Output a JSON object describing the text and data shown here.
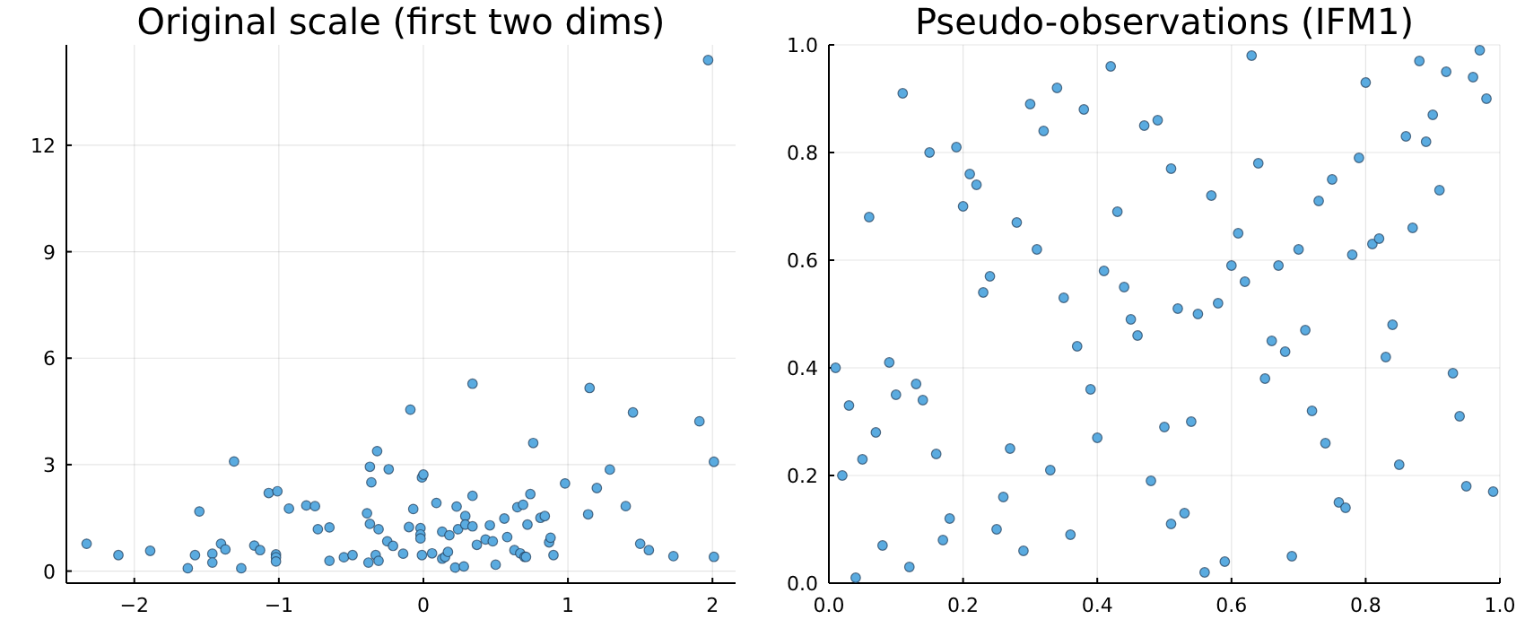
{
  "chart_data": [
    {
      "type": "scatter",
      "title": "Original scale (first two dims)",
      "xlim": [
        -2.47,
        2.16
      ],
      "ylim": [
        -0.34,
        14.83
      ],
      "xticks": [
        {
          "value": -2,
          "label": "−2"
        },
        {
          "value": -1,
          "label": "−1"
        },
        0,
        1,
        2
      ],
      "yticks": [
        0,
        3,
        6,
        9,
        12
      ],
      "grid": true,
      "marker": "circle",
      "series": [
        {
          "color": "#5aabe0",
          "x": [
            -2.33,
            -2.11,
            -1.89,
            -1.63,
            -1.58,
            -1.55,
            -1.46,
            -1.46,
            -1.4,
            -1.37,
            -1.31,
            -1.26,
            -1.17,
            -1.13,
            -1.07,
            -1.02,
            -1.02,
            -1.02,
            -1.01,
            -0.93,
            -0.81,
            -0.75,
            -0.73,
            -0.65,
            -0.65,
            -0.55,
            -0.49,
            -0.39,
            -0.38,
            -0.37,
            -0.37,
            -0.36,
            -0.33,
            -0.32,
            -0.31,
            -0.31,
            -0.25,
            -0.24,
            -0.21,
            -0.14,
            -0.1,
            -0.09,
            -0.07,
            -0.02,
            -0.02,
            -0.02,
            -0.01,
            -0.01,
            0.0,
            0.06,
            0.09,
            0.13,
            0.13,
            0.15,
            0.17,
            0.18,
            0.22,
            0.23,
            0.24,
            0.28,
            0.29,
            0.29,
            0.34,
            0.34,
            0.34,
            0.37,
            0.43,
            0.46,
            0.48,
            0.5,
            0.56,
            0.58,
            0.63,
            0.65,
            0.67,
            0.69,
            0.7,
            0.71,
            0.72,
            0.74,
            0.76,
            0.81,
            0.84,
            0.87,
            0.88,
            0.9,
            0.98,
            1.14,
            1.15,
            1.2,
            1.29,
            1.4,
            1.45,
            1.5,
            1.56,
            1.73,
            1.91,
            2.01,
            2.01,
            1.97
          ],
          "values": [
            0.77,
            0.45,
            0.57,
            0.08,
            0.45,
            1.68,
            0.49,
            0.24,
            0.77,
            0.61,
            3.09,
            0.08,
            0.72,
            0.59,
            2.2,
            0.47,
            0.39,
            0.27,
            2.25,
            1.76,
            1.85,
            1.83,
            1.18,
            1.23,
            0.29,
            0.39,
            0.45,
            1.63,
            0.24,
            2.94,
            1.33,
            2.5,
            0.45,
            3.38,
            1.18,
            0.29,
            0.84,
            2.87,
            0.71,
            0.49,
            1.24,
            4.55,
            1.75,
            1.21,
            1.03,
            0.92,
            0.45,
            2.64,
            2.72,
            0.5,
            1.92,
            1.11,
            0.35,
            0.4,
            0.54,
            1.01,
            0.1,
            1.82,
            1.18,
            0.13,
            1.55,
            1.31,
            1.26,
            2.12,
            5.28,
            0.74,
            0.89,
            1.29,
            0.84,
            0.18,
            1.48,
            0.96,
            0.59,
            1.8,
            0.5,
            1.87,
            0.4,
            0.4,
            1.31,
            2.17,
            3.61,
            1.5,
            1.55,
            0.81,
            0.94,
            0.45,
            2.47,
            1.6,
            5.16,
            2.34,
            2.86,
            1.83,
            4.47,
            0.77,
            0.59,
            0.42,
            4.22,
            3.08,
            0.4,
            14.4
          ]
        }
      ]
    },
    {
      "type": "scatter",
      "title": "Pseudo-observations (IFM1)",
      "xlim": [
        0,
        1
      ],
      "ylim": [
        0,
        1
      ],
      "xticks": [
        {
          "value": 0,
          "label": "0.0"
        },
        {
          "value": 0.2,
          "label": "0.2"
        },
        {
          "value": 0.4,
          "label": "0.4"
        },
        {
          "value": 0.6,
          "label": "0.6"
        },
        {
          "value": 0.8,
          "label": "0.8"
        },
        {
          "value": 1,
          "label": "1.0"
        }
      ],
      "yticks": [
        {
          "value": 0,
          "label": "0.0"
        },
        {
          "value": 0.2,
          "label": "0.2"
        },
        {
          "value": 0.4,
          "label": "0.4"
        },
        {
          "value": 0.6,
          "label": "0.6"
        },
        {
          "value": 0.8,
          "label": "0.8"
        },
        {
          "value": 1,
          "label": "1.0"
        }
      ],
      "grid": true,
      "marker": "circle",
      "series": [
        {
          "color": "#5aabe0",
          "x": [
            0.01,
            0.02,
            0.03,
            0.04,
            0.05,
            0.07,
            0.08,
            0.09,
            0.1,
            0.12,
            0.13,
            0.14,
            0.16,
            0.17,
            0.18,
            0.25,
            0.26,
            0.27,
            0.29,
            0.33,
            0.36,
            0.37,
            0.39,
            0.4,
            0.45,
            0.46,
            0.48,
            0.5,
            0.51,
            0.52,
            0.53,
            0.54,
            0.55,
            0.56,
            0.58,
            0.59,
            0.65,
            0.66,
            0.68,
            0.69,
            0.71,
            0.72,
            0.74,
            0.76,
            0.77,
            0.83,
            0.84,
            0.85,
            0.93,
            0.94,
            0.95,
            0.99,
            0.06,
            0.11,
            0.15,
            0.19,
            0.2,
            0.21,
            0.22,
            0.23,
            0.24,
            0.28,
            0.3,
            0.31,
            0.32,
            0.34,
            0.35,
            0.38,
            0.41,
            0.42,
            0.43,
            0.44,
            0.47,
            0.49,
            0.51,
            0.57,
            0.6,
            0.61,
            0.62,
            0.63,
            0.64,
            0.67,
            0.7,
            0.73,
            0.75,
            0.78,
            0.79,
            0.8,
            0.81,
            0.82,
            0.86,
            0.87,
            0.88,
            0.89,
            0.9,
            0.91,
            0.92,
            0.96,
            0.97,
            0.98
          ],
          "values": [
            0.4,
            0.2,
            0.33,
            0.01,
            0.23,
            0.28,
            0.07,
            0.41,
            0.35,
            0.03,
            0.37,
            0.34,
            0.24,
            0.08,
            0.12,
            0.1,
            0.16,
            0.25,
            0.06,
            0.21,
            0.09,
            0.44,
            0.36,
            0.27,
            0.49,
            0.46,
            0.19,
            0.29,
            0.11,
            0.51,
            0.13,
            0.3,
            0.5,
            0.02,
            0.52,
            0.04,
            0.38,
            0.45,
            0.43,
            0.05,
            0.47,
            0.32,
            0.26,
            0.15,
            0.14,
            0.42,
            0.48,
            0.22,
            0.39,
            0.31,
            0.18,
            0.17,
            0.68,
            0.91,
            0.8,
            0.81,
            0.7,
            0.76,
            0.74,
            0.54,
            0.57,
            0.67,
            0.89,
            0.62,
            0.84,
            0.92,
            0.53,
            0.88,
            0.58,
            0.96,
            0.69,
            0.55,
            0.85,
            0.86,
            0.77,
            0.72,
            0.59,
            0.65,
            0.56,
            0.98,
            0.78,
            0.59,
            0.62,
            0.71,
            0.75,
            0.61,
            0.79,
            0.93,
            0.63,
            0.64,
            0.83,
            0.66,
            0.97,
            0.82,
            0.87,
            0.73,
            0.95,
            0.94,
            0.99,
            0.9
          ]
        }
      ]
    }
  ]
}
